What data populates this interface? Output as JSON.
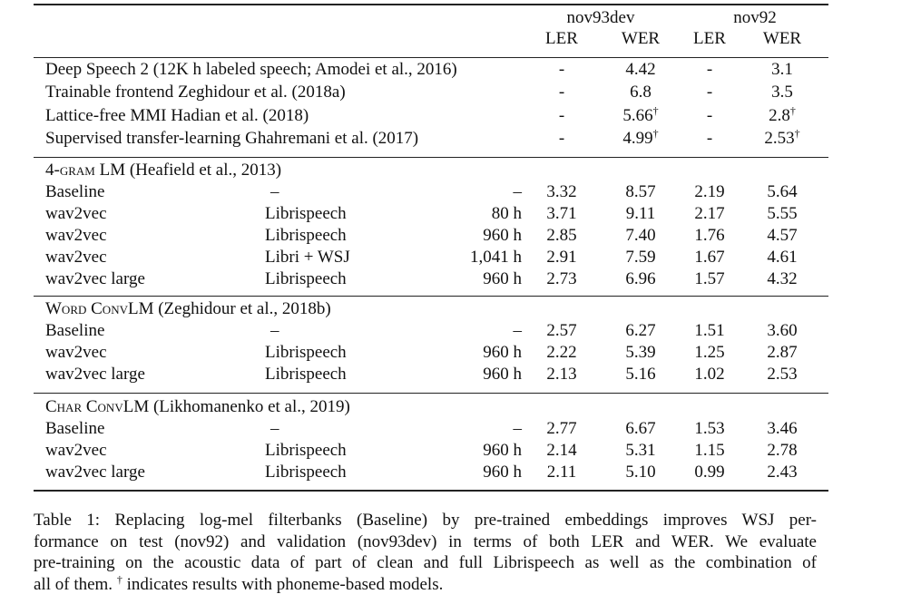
{
  "header": {
    "group1": "nov93dev",
    "group2": "nov92",
    "cols": [
      "LER",
      "WER",
      "LER",
      "WER"
    ]
  },
  "top_rows": [
    {
      "label": "Deep Speech 2 (12K h labeled speech; Amodei et al., 2016)",
      "cells": [
        {
          "text": "-"
        },
        {
          "text": "4.42"
        },
        {
          "text": "-"
        },
        {
          "text": "3.1"
        }
      ]
    },
    {
      "label": "Trainable frontend Zeghidour et al. (2018a)",
      "cells": [
        {
          "text": "-"
        },
        {
          "text": "6.8"
        },
        {
          "text": "-"
        },
        {
          "text": "3.5"
        }
      ]
    },
    {
      "label": "Lattice-free MMI Hadian et al. (2018)",
      "cells": [
        {
          "text": "-"
        },
        {
          "text": "5.66",
          "mark": "†"
        },
        {
          "text": "-"
        },
        {
          "text": "2.8",
          "mark": "†"
        }
      ]
    },
    {
      "label": "Supervised transfer-learning Ghahremani et al. (2017)",
      "cells": [
        {
          "text": "-"
        },
        {
          "text": "4.99",
          "mark": "†"
        },
        {
          "text": "-"
        },
        {
          "text": "2.53",
          "mark": "†"
        }
      ]
    }
  ],
  "sections": [
    {
      "name": "4-gram LM",
      "cite": "(Heafield et al., 2013)",
      "rows": [
        {
          "label": "Baseline",
          "data": "–",
          "hours": "–",
          "cells": [
            "3.32",
            "8.57",
            "2.19",
            "5.64"
          ]
        },
        {
          "label": "wav2vec",
          "data": "Librispeech",
          "hours": "80 h",
          "cells": [
            "3.71",
            "9.11",
            "2.17",
            "5.55"
          ]
        },
        {
          "label": "wav2vec",
          "data": "Librispeech",
          "hours": "960 h",
          "cells": [
            "2.85",
            "7.40",
            "1.76",
            "4.57"
          ]
        },
        {
          "label": "wav2vec",
          "data": "Libri + WSJ",
          "hours": "1,041 h",
          "cells": [
            "2.91",
            "7.59",
            "1.67",
            "4.61"
          ]
        },
        {
          "label": "wav2vec large",
          "data": "Librispeech",
          "hours": "960 h",
          "cells": [
            "2.73",
            "6.96",
            "1.57",
            "4.32"
          ]
        }
      ]
    },
    {
      "name": "Word ConvLM",
      "cite": "(Zeghidour et al., 2018b)",
      "rows": [
        {
          "label": "Baseline",
          "data": "–",
          "hours": "–",
          "cells": [
            "2.57",
            "6.27",
            "1.51",
            "3.60"
          ]
        },
        {
          "label": "wav2vec",
          "data": "Librispeech",
          "hours": "960 h",
          "cells": [
            "2.22",
            "5.39",
            "1.25",
            "2.87"
          ]
        },
        {
          "label": "wav2vec large",
          "data": "Librispeech",
          "hours": "960 h",
          "cells": [
            "2.13",
            "5.16",
            "1.02",
            "2.53"
          ]
        }
      ]
    },
    {
      "name": "Char ConvLM",
      "cite": "(Likhomanenko et al., 2019)",
      "rows": [
        {
          "label": "Baseline",
          "data": "–",
          "hours": "–",
          "cells": [
            "2.77",
            "6.67",
            "1.53",
            "3.46"
          ]
        },
        {
          "label": "wav2vec",
          "data": "Librispeech",
          "hours": "960 h",
          "cells": [
            "2.14",
            "5.31",
            "1.15",
            "2.78"
          ]
        },
        {
          "label": "wav2vec large",
          "data": "Librispeech",
          "hours": "960 h",
          "cells": [
            "2.11",
            "5.10",
            "0.99",
            "2.43"
          ]
        }
      ]
    }
  ],
  "caption": {
    "lines": [
      "Table 1: Replacing log-mel filterbanks (Baseline) by pre-trained embeddings improves WSJ per-",
      "formance on test (nov92) and validation (nov93dev) in terms of both LER and WER. We evaluate",
      "pre-training on the acoustic data of part of clean and full Librispeech as well as the combination of"
    ],
    "last": [
      "all of them. ",
      "†",
      " indicates results with phoneme-based models."
    ]
  }
}
